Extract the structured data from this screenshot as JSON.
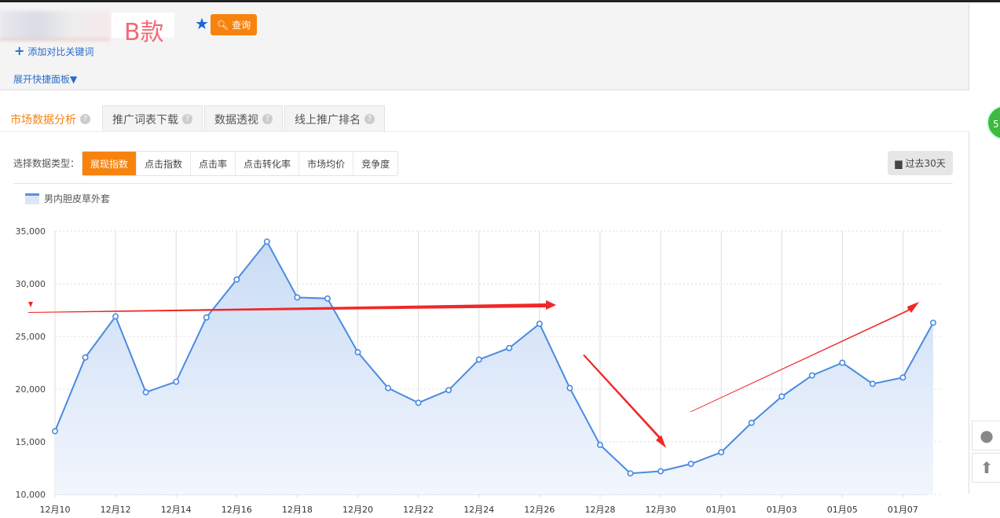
{
  "search": {
    "keyword_annotation": "B款",
    "query_label": "查询",
    "add_compare_label": "添加对比关键词",
    "expand_panel_label": "展开快捷面板"
  },
  "tabs": [
    {
      "label": "市场数据分析",
      "active": true
    },
    {
      "label": "推广词表下载"
    },
    {
      "label": "数据透视"
    },
    {
      "label": "线上推广排名"
    }
  ],
  "data_type": {
    "label": "选择数据类型：",
    "options": [
      "展现指数",
      "点击指数",
      "点击率",
      "点击转化率",
      "市场均价",
      "竞争度"
    ],
    "selected": "展现指数"
  },
  "date_range_label": "过去30天",
  "badge_text": "5",
  "colors": {
    "accent": "#f7830f",
    "line": "#4a8ae0",
    "link": "#2a6cc8",
    "annotation": "#f02828"
  },
  "chart_data": {
    "type": "area",
    "legend": [
      "男内胆皮草外套"
    ],
    "legend_placement": "top-left",
    "ylim": [
      10000,
      35000
    ],
    "yticks": [
      "10,000",
      "15,000",
      "20,000",
      "25,000",
      "30,000",
      "35,000"
    ],
    "xtick_labels": [
      "12月10",
      "12月12",
      "12月14",
      "12月16",
      "12月18",
      "12月20",
      "12月22",
      "12月24",
      "12月26",
      "12月28",
      "12月30",
      "01月01",
      "01月03",
      "01月05",
      "01月07"
    ],
    "x": [
      "12月10",
      "12月11",
      "12月12",
      "12月13",
      "12月14",
      "12月15",
      "12月16",
      "12月17",
      "12月18",
      "12月19",
      "12月20",
      "12月21",
      "12月22",
      "12月23",
      "12月24",
      "12月25",
      "12月26",
      "12月27",
      "12月28",
      "12月29",
      "12月30",
      "12月31",
      "01月01",
      "01月02",
      "01月03",
      "01月04",
      "01月05",
      "01月06",
      "01月07",
      "01月08"
    ],
    "series": [
      {
        "name": "男内胆皮草外套",
        "values": [
          16000,
          23000,
          26900,
          19700,
          20700,
          26800,
          30400,
          34000,
          28700,
          28600,
          23500,
          20100,
          18700,
          19900,
          22800,
          23900,
          26200,
          20100,
          14700,
          12000,
          12200,
          12900,
          14000,
          16800,
          19300,
          21300,
          22500,
          20500,
          21100,
          26300
        ]
      }
    ],
    "grid": true
  }
}
